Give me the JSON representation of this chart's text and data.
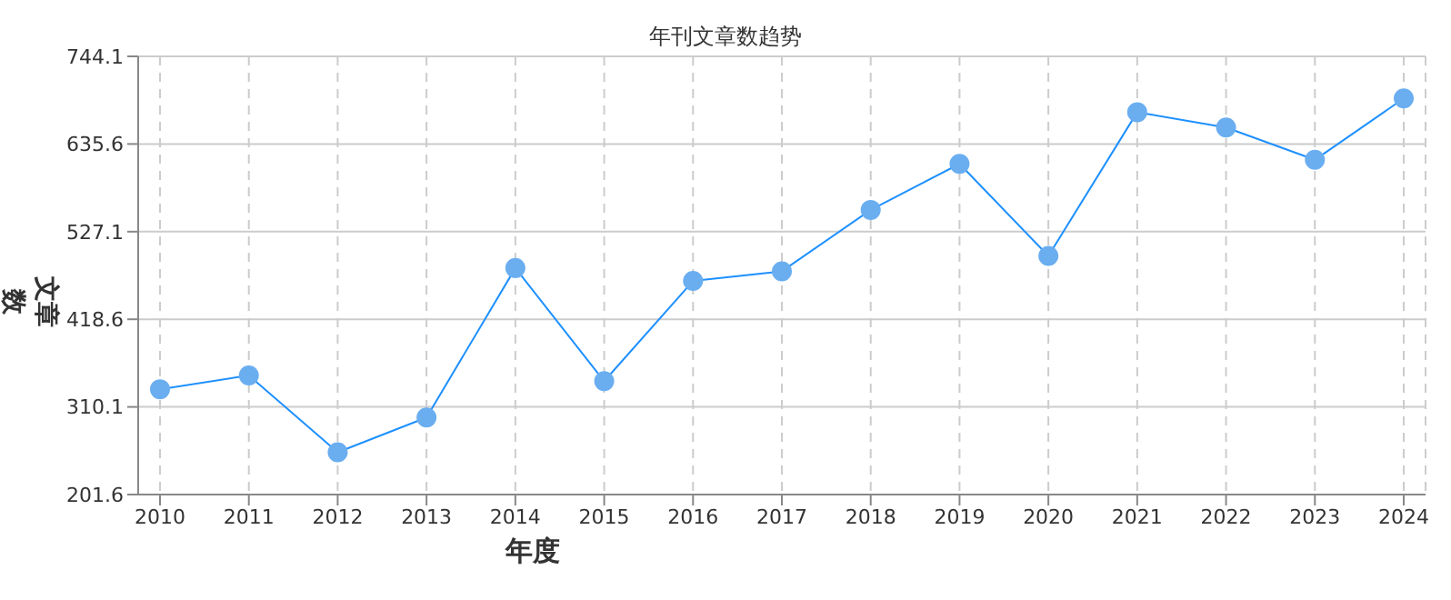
{
  "chart_data": {
    "type": "line",
    "title": "年刊文章数趋势",
    "xlabel": "年度",
    "ylabel": "文章数",
    "categories": [
      "2010",
      "2011",
      "2012",
      "2013",
      "2014",
      "2015",
      "2016",
      "2017",
      "2018",
      "2019",
      "2020",
      "2021",
      "2022",
      "2023",
      "2024"
    ],
    "series": [
      {
        "color": "#1e90ff",
        "values": [
          332,
          349,
          254,
          297,
          482,
          342,
          466,
          478,
          554,
          611,
          497,
          675,
          656,
          616,
          692
        ]
      }
    ],
    "ylim": [
      201.6,
      744.1
    ],
    "yticks": [
      201.6,
      310.1,
      418.6,
      527.1,
      635.6,
      744.1
    ],
    "grid": true,
    "marker": "circle",
    "line_style": "solid",
    "legend": false
  }
}
